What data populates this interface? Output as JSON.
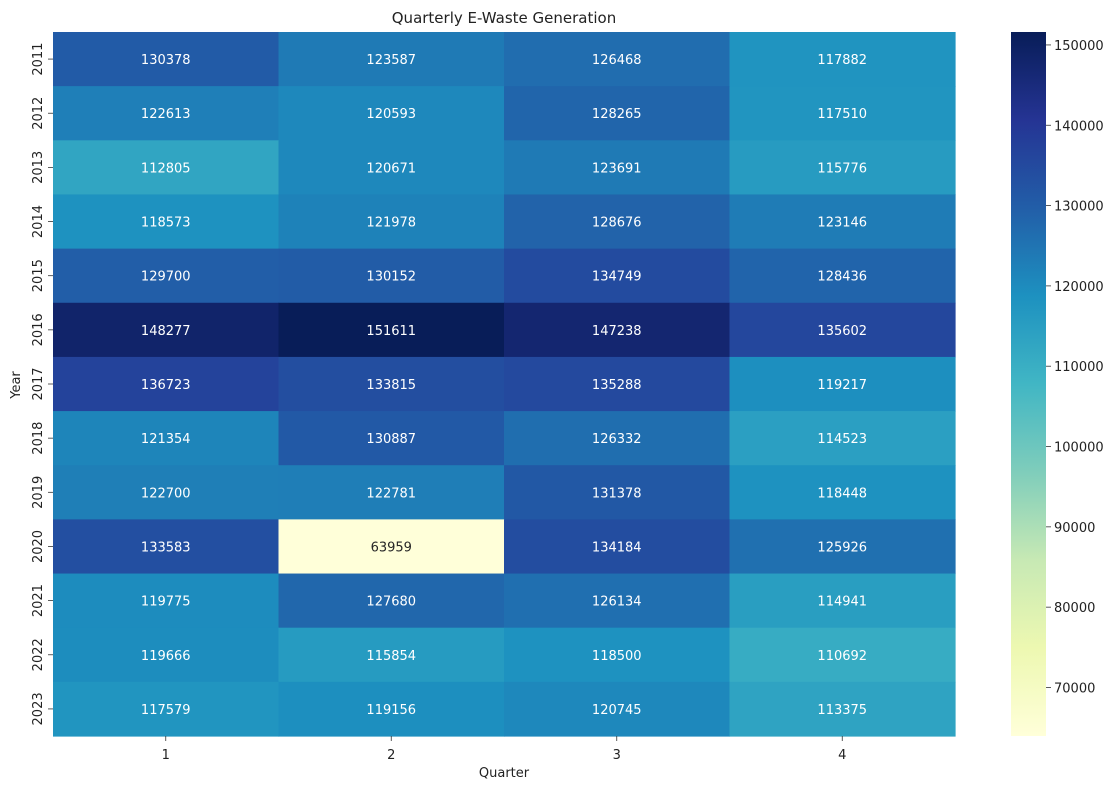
{
  "chart_data": {
    "type": "heatmap",
    "title": "Quarterly E-Waste Generation",
    "xlabel": "Quarter",
    "ylabel": "Year",
    "x": [
      "1",
      "2",
      "3",
      "4"
    ],
    "y": [
      "2011",
      "2012",
      "2013",
      "2014",
      "2015",
      "2016",
      "2017",
      "2018",
      "2019",
      "2020",
      "2021",
      "2022",
      "2023"
    ],
    "values": [
      [
        130378,
        123587,
        126468,
        117882
      ],
      [
        122613,
        120593,
        128265,
        117510
      ],
      [
        112805,
        120671,
        123691,
        115776
      ],
      [
        118573,
        121978,
        128676,
        123146
      ],
      [
        129700,
        130152,
        134749,
        128436
      ],
      [
        148277,
        151611,
        147238,
        135602
      ],
      [
        136723,
        133815,
        135288,
        119217
      ],
      [
        121354,
        130887,
        126332,
        114523
      ],
      [
        122700,
        122781,
        131378,
        118448
      ],
      [
        133583,
        63959,
        134184,
        125926
      ],
      [
        119775,
        127680,
        126134,
        114941
      ],
      [
        119666,
        115854,
        118500,
        110692
      ],
      [
        117579,
        119156,
        120745,
        113375
      ]
    ],
    "color_scale": {
      "name": "YlGnBu",
      "min": 63959,
      "max": 151611,
      "ticks": [
        "70000",
        "80000",
        "90000",
        "100000",
        "110000",
        "120000",
        "130000",
        "140000",
        "150000"
      ]
    },
    "grid": false,
    "legend": "colorbar-right"
  }
}
